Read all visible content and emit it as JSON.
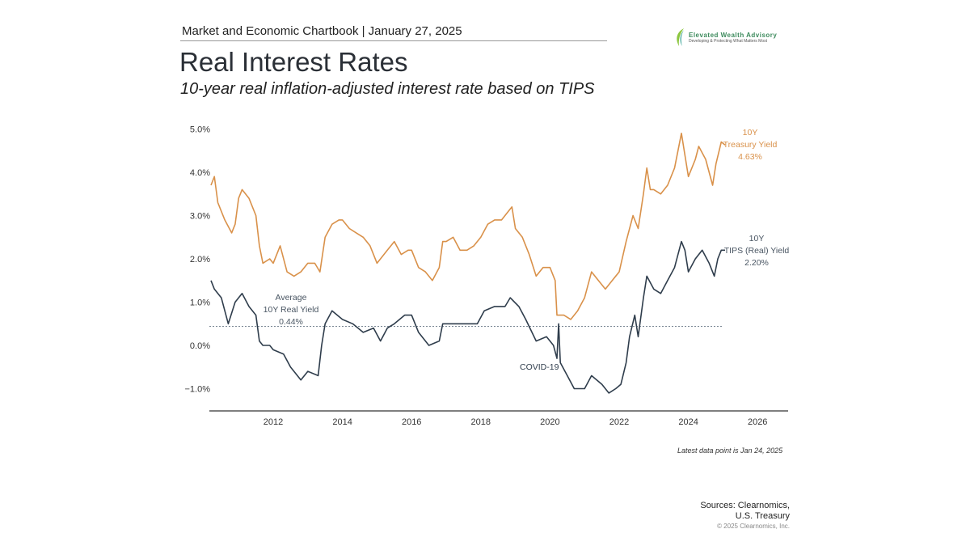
{
  "header": {
    "chartbook": "Market and Economic Chartbook | January 27, 2025",
    "title": "Real Interest Rates",
    "subtitle": "10-year real inflation-adjusted interest rate based on TIPS"
  },
  "logo": {
    "name": "Elevated Wealth Advisory",
    "tagline": "Developing & Protecting What Matters Most"
  },
  "footer": {
    "note": "Latest data point is Jan 24, 2025",
    "sources_line1": "Sources: Clearnomics,",
    "sources_line2": "U.S. Treasury",
    "copyright": "© 2025 Clearnomics, Inc."
  },
  "chart_data": {
    "type": "line",
    "xlim": [
      2010.2,
      2026.9
    ],
    "ylim": [
      -1.5,
      5.1
    ],
    "x_ticks": [
      "2012",
      "2014",
      "2016",
      "2018",
      "2020",
      "2022",
      "2024",
      "2026"
    ],
    "y_ticks": [
      "5.0%",
      "4.0%",
      "3.0%",
      "2.0%",
      "1.0%",
      "0.0%",
      "−1.0%"
    ],
    "y_tick_values": [
      5,
      4,
      3,
      2,
      1,
      0,
      -1
    ],
    "x_tick_values": [
      2012,
      2014,
      2016,
      2018,
      2020,
      2022,
      2024,
      2026
    ],
    "grid": false,
    "colors": {
      "nominal": "#d9914a",
      "real": "#2f3d4c",
      "average": "#7d8a96"
    },
    "series": [
      {
        "name": "10Y Treasury Yield",
        "label_lines": [
          "10Y",
          "Treasury Yield",
          "4.63%"
        ],
        "x": [
          2010.2,
          2010.3,
          2010.4,
          2010.6,
          2010.8,
          2010.9,
          2011.0,
          2011.1,
          2011.3,
          2011.5,
          2011.6,
          2011.7,
          2011.9,
          2012.0,
          2012.2,
          2012.4,
          2012.6,
          2012.8,
          2013.0,
          2013.2,
          2013.35,
          2013.5,
          2013.7,
          2013.9,
          2014.0,
          2014.2,
          2014.4,
          2014.6,
          2014.8,
          2015.0,
          2015.1,
          2015.3,
          2015.5,
          2015.7,
          2015.9,
          2016.0,
          2016.2,
          2016.4,
          2016.6,
          2016.8,
          2016.9,
          2017.0,
          2017.2,
          2017.4,
          2017.6,
          2017.8,
          2018.0,
          2018.2,
          2018.4,
          2018.6,
          2018.8,
          2018.9,
          2019.0,
          2019.2,
          2019.4,
          2019.6,
          2019.8,
          2020.0,
          2020.15,
          2020.2,
          2020.4,
          2020.6,
          2020.8,
          2021.0,
          2021.2,
          2021.4,
          2021.6,
          2021.8,
          2022.0,
          2022.2,
          2022.4,
          2022.55,
          2022.7,
          2022.8,
          2022.9,
          2023.0,
          2023.2,
          2023.4,
          2023.6,
          2023.8,
          2023.9,
          2024.0,
          2024.2,
          2024.3,
          2024.5,
          2024.7,
          2024.8,
          2024.95,
          2025.06
        ],
        "values": [
          3.7,
          3.9,
          3.3,
          2.9,
          2.6,
          2.8,
          3.4,
          3.6,
          3.4,
          3.0,
          2.3,
          1.9,
          2.0,
          1.9,
          2.3,
          1.7,
          1.6,
          1.7,
          1.9,
          1.9,
          1.7,
          2.5,
          2.8,
          2.9,
          2.9,
          2.7,
          2.6,
          2.5,
          2.3,
          1.9,
          2.0,
          2.2,
          2.4,
          2.1,
          2.2,
          2.2,
          1.8,
          1.7,
          1.5,
          1.8,
          2.4,
          2.4,
          2.5,
          2.2,
          2.2,
          2.3,
          2.5,
          2.8,
          2.9,
          2.9,
          3.1,
          3.2,
          2.7,
          2.5,
          2.1,
          1.6,
          1.8,
          1.8,
          1.5,
          0.7,
          0.7,
          0.6,
          0.8,
          1.1,
          1.7,
          1.5,
          1.3,
          1.5,
          1.7,
          2.4,
          3.0,
          2.7,
          3.5,
          4.1,
          3.6,
          3.6,
          3.5,
          3.7,
          4.1,
          4.9,
          4.4,
          3.9,
          4.3,
          4.6,
          4.3,
          3.7,
          4.2,
          4.7,
          4.63
        ]
      },
      {
        "name": "10Y TIPS (Real) Yield",
        "label_lines": [
          "10Y",
          "TIPS (Real) Yield",
          "2.20%"
        ],
        "x": [
          2010.2,
          2010.3,
          2010.5,
          2010.7,
          2010.9,
          2011.1,
          2011.3,
          2011.5,
          2011.6,
          2011.7,
          2011.9,
          2012.0,
          2012.3,
          2012.5,
          2012.8,
          2013.0,
          2013.3,
          2013.4,
          2013.5,
          2013.7,
          2014.0,
          2014.3,
          2014.6,
          2014.9,
          2015.1,
          2015.3,
          2015.5,
          2015.8,
          2016.0,
          2016.2,
          2016.5,
          2016.8,
          2016.9,
          2017.2,
          2017.5,
          2017.9,
          2018.1,
          2018.4,
          2018.7,
          2018.85,
          2019.1,
          2019.3,
          2019.6,
          2019.9,
          2020.1,
          2020.2,
          2020.25,
          2020.3,
          2020.5,
          2020.7,
          2021.0,
          2021.2,
          2021.5,
          2021.7,
          2021.9,
          2022.05,
          2022.2,
          2022.3,
          2022.45,
          2022.55,
          2022.7,
          2022.8,
          2023.0,
          2023.2,
          2023.4,
          2023.6,
          2023.8,
          2023.9,
          2024.0,
          2024.2,
          2024.4,
          2024.6,
          2024.75,
          2024.85,
          2024.95,
          2025.06
        ],
        "values": [
          1.5,
          1.3,
          1.1,
          0.5,
          1.0,
          1.2,
          0.9,
          0.7,
          0.1,
          0.0,
          0.0,
          -0.1,
          -0.2,
          -0.5,
          -0.8,
          -0.6,
          -0.7,
          0.0,
          0.5,
          0.8,
          0.6,
          0.5,
          0.3,
          0.4,
          0.1,
          0.4,
          0.5,
          0.7,
          0.7,
          0.3,
          0.0,
          0.1,
          0.5,
          0.5,
          0.5,
          0.5,
          0.8,
          0.9,
          0.9,
          1.1,
          0.9,
          0.6,
          0.1,
          0.2,
          0.0,
          -0.3,
          0.5,
          -0.4,
          -0.7,
          -1.0,
          -1.0,
          -0.7,
          -0.9,
          -1.1,
          -1.0,
          -0.9,
          -0.4,
          0.2,
          0.7,
          0.2,
          1.1,
          1.6,
          1.3,
          1.2,
          1.5,
          1.8,
          2.4,
          2.2,
          1.7,
          2.0,
          2.2,
          1.9,
          1.6,
          2.0,
          2.2,
          2.2
        ]
      }
    ],
    "average": {
      "value": 0.44,
      "label_lines": [
        "Average",
        "10Y Real Yield",
        "0.44%"
      ]
    },
    "annotations": [
      {
        "text": "COVID-19",
        "x": 2020.2
      }
    ]
  }
}
